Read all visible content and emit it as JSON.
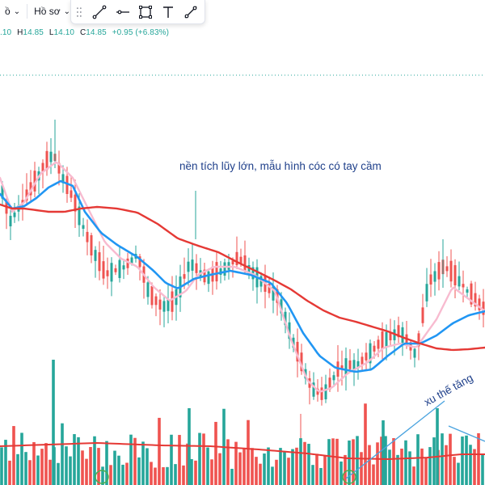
{
  "toolbar": {
    "dropdown_1": {
      "label": "ồ"
    },
    "dropdown_2": {
      "label": "Hồ sơ"
    }
  },
  "drawing_tools": [
    "trend-line-icon",
    "horizontal-ray-icon",
    "rectangle-icon",
    "text-icon",
    "brush-icon"
  ],
  "legend": {
    "open_fragment": ".10",
    "high_label": "H",
    "high": "14.85",
    "low_label": "L",
    "low": "14.10",
    "close_label": "C",
    "close": "14.85",
    "change": "+0.95 (+6.83%)"
  },
  "annotations": {
    "base_text": "nền tích lũy lớn, mẫu hình cóc có tay cầm",
    "trend_text": "xu thế tăng"
  },
  "colors": {
    "up": "#26a69a",
    "down": "#ef5350",
    "ma_fast": "#f8bbd0",
    "ma_mid": "#2196f3",
    "ma_slow": "#e53935",
    "annotation": "#1e3f8a",
    "trendline": "#4aa3df",
    "last_price_line": "#26a69a"
  }
}
